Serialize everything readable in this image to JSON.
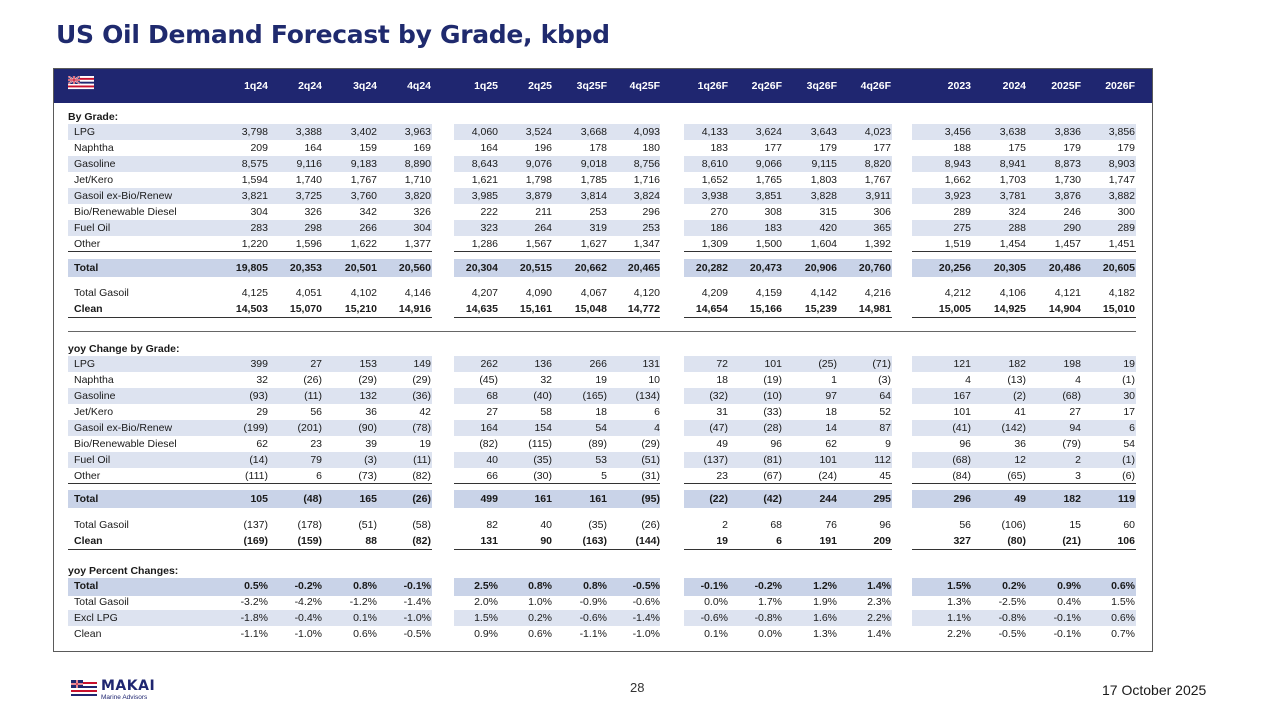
{
  "title": "US Oil Demand Forecast by Grade, kbpd",
  "columns": [
    "1q24",
    "2q24",
    "3q24",
    "4q24",
    "1q25",
    "2q25",
    "3q25F",
    "4q25F",
    "1q26F",
    "2q26F",
    "3q26F",
    "4q26F",
    "2023",
    "2024",
    "2025F",
    "2026F"
  ],
  "sections": [
    {
      "heading": "By Grade:",
      "rows": [
        {
          "label": "LPG",
          "values": [
            "3,798",
            "3,388",
            "3,402",
            "3,963",
            "4,060",
            "3,524",
            "3,668",
            "4,093",
            "4,133",
            "3,624",
            "3,643",
            "4,023",
            "3,456",
            "3,638",
            "3,836",
            "3,856"
          ]
        },
        {
          "label": "Naphtha",
          "values": [
            "209",
            "164",
            "159",
            "169",
            "164",
            "196",
            "178",
            "180",
            "183",
            "177",
            "179",
            "177",
            "188",
            "175",
            "179",
            "179"
          ]
        },
        {
          "label": "Gasoline",
          "values": [
            "8,575",
            "9,116",
            "9,183",
            "8,890",
            "8,643",
            "9,076",
            "9,018",
            "8,756",
            "8,610",
            "9,066",
            "9,115",
            "8,820",
            "8,943",
            "8,941",
            "8,873",
            "8,903"
          ]
        },
        {
          "label": "Jet/Kero",
          "values": [
            "1,594",
            "1,740",
            "1,767",
            "1,710",
            "1,621",
            "1,798",
            "1,785",
            "1,716",
            "1,652",
            "1,765",
            "1,803",
            "1,767",
            "1,662",
            "1,703",
            "1,730",
            "1,747"
          ]
        },
        {
          "label": "Gasoil ex-Bio/Renew",
          "values": [
            "3,821",
            "3,725",
            "3,760",
            "3,820",
            "3,985",
            "3,879",
            "3,814",
            "3,824",
            "3,938",
            "3,851",
            "3,828",
            "3,911",
            "3,923",
            "3,781",
            "3,876",
            "3,882"
          ]
        },
        {
          "label": "Bio/Renewable Diesel",
          "values": [
            "304",
            "326",
            "342",
            "326",
            "222",
            "211",
            "253",
            "296",
            "270",
            "308",
            "315",
            "306",
            "289",
            "324",
            "246",
            "300"
          ]
        },
        {
          "label": "Fuel Oil",
          "values": [
            "283",
            "298",
            "266",
            "304",
            "323",
            "264",
            "319",
            "253",
            "186",
            "183",
            "420",
            "365",
            "275",
            "288",
            "290",
            "289"
          ]
        },
        {
          "label": "Other",
          "values": [
            "1,220",
            "1,596",
            "1,622",
            "1,377",
            "1,286",
            "1,567",
            "1,627",
            "1,347",
            "1,309",
            "1,500",
            "1,604",
            "1,392",
            "1,519",
            "1,454",
            "1,457",
            "1,451"
          ]
        }
      ],
      "total": {
        "label": "Total",
        "values": [
          "19,805",
          "20,353",
          "20,501",
          "20,560",
          "20,304",
          "20,515",
          "20,662",
          "20,465",
          "20,282",
          "20,473",
          "20,906",
          "20,760",
          "20,256",
          "20,305",
          "20,486",
          "20,605"
        ]
      },
      "extra": [
        {
          "label": "Total Gasoil",
          "bold": false,
          "values": [
            "4,125",
            "4,051",
            "4,102",
            "4,146",
            "4,207",
            "4,090",
            "4,067",
            "4,120",
            "4,209",
            "4,159",
            "4,142",
            "4,216",
            "4,212",
            "4,106",
            "4,121",
            "4,182"
          ]
        },
        {
          "label": "Clean",
          "bold": true,
          "values": [
            "14,503",
            "15,070",
            "15,210",
            "14,916",
            "14,635",
            "15,161",
            "15,048",
            "14,772",
            "14,654",
            "15,166",
            "15,239",
            "14,981",
            "15,005",
            "14,925",
            "14,904",
            "15,010"
          ]
        }
      ]
    },
    {
      "heading": "yoy Change by Grade:",
      "rows": [
        {
          "label": "LPG",
          "values": [
            "399",
            "27",
            "153",
            "149",
            "262",
            "136",
            "266",
            "131",
            "72",
            "101",
            "(25)",
            "(71)",
            "121",
            "182",
            "198",
            "19"
          ]
        },
        {
          "label": "Naphtha",
          "values": [
            "32",
            "(26)",
            "(29)",
            "(29)",
            "(45)",
            "32",
            "19",
            "10",
            "18",
            "(19)",
            "1",
            "(3)",
            "4",
            "(13)",
            "4",
            "(1)"
          ]
        },
        {
          "label": "Gasoline",
          "values": [
            "(93)",
            "(11)",
            "132",
            "(36)",
            "68",
            "(40)",
            "(165)",
            "(134)",
            "(32)",
            "(10)",
            "97",
            "64",
            "167",
            "(2)",
            "(68)",
            "30"
          ]
        },
        {
          "label": "Jet/Kero",
          "values": [
            "29",
            "56",
            "36",
            "42",
            "27",
            "58",
            "18",
            "6",
            "31",
            "(33)",
            "18",
            "52",
            "101",
            "41",
            "27",
            "17"
          ]
        },
        {
          "label": "Gasoil ex-Bio/Renew",
          "values": [
            "(199)",
            "(201)",
            "(90)",
            "(78)",
            "164",
            "154",
            "54",
            "4",
            "(47)",
            "(28)",
            "14",
            "87",
            "(41)",
            "(142)",
            "94",
            "6"
          ]
        },
        {
          "label": "Bio/Renewable Diesel",
          "values": [
            "62",
            "23",
            "39",
            "19",
            "(82)",
            "(115)",
            "(89)",
            "(29)",
            "49",
            "96",
            "62",
            "9",
            "96",
            "36",
            "(79)",
            "54"
          ]
        },
        {
          "label": "Fuel Oil",
          "values": [
            "(14)",
            "79",
            "(3)",
            "(11)",
            "40",
            "(35)",
            "53",
            "(51)",
            "(137)",
            "(81)",
            "101",
            "112",
            "(68)",
            "12",
            "2",
            "(1)"
          ]
        },
        {
          "label": "Other",
          "values": [
            "(111)",
            "6",
            "(73)",
            "(82)",
            "66",
            "(30)",
            "5",
            "(31)",
            "23",
            "(67)",
            "(24)",
            "45",
            "(84)",
            "(65)",
            "3",
            "(6)"
          ]
        }
      ],
      "total": {
        "label": "Total",
        "values": [
          "105",
          "(48)",
          "165",
          "(26)",
          "499",
          "161",
          "161",
          "(95)",
          "(22)",
          "(42)",
          "244",
          "295",
          "296",
          "49",
          "182",
          "119"
        ]
      },
      "extra": [
        {
          "label": "Total Gasoil",
          "bold": false,
          "values": [
            "(137)",
            "(178)",
            "(51)",
            "(58)",
            "82",
            "40",
            "(35)",
            "(26)",
            "2",
            "68",
            "76",
            "96",
            "56",
            "(106)",
            "15",
            "60"
          ]
        },
        {
          "label": "Clean",
          "bold": true,
          "values": [
            "(169)",
            "(159)",
            "88",
            "(82)",
            "131",
            "90",
            "(163)",
            "(144)",
            "19",
            "6",
            "191",
            "209",
            "327",
            "(80)",
            "(21)",
            "106"
          ]
        }
      ]
    },
    {
      "heading": "yoy Percent Changes:",
      "rows": [
        {
          "label": "Total",
          "bold": true,
          "values": [
            "0.5%",
            "-0.2%",
            "0.8%",
            "-0.1%",
            "2.5%",
            "0.8%",
            "0.8%",
            "-0.5%",
            "-0.1%",
            "-0.2%",
            "1.2%",
            "1.4%",
            "1.5%",
            "0.2%",
            "0.9%",
            "0.6%"
          ]
        },
        {
          "label": "Total Gasoil",
          "values": [
            "-3.2%",
            "-4.2%",
            "-1.2%",
            "-1.4%",
            "2.0%",
            "1.0%",
            "-0.9%",
            "-0.6%",
            "0.0%",
            "1.7%",
            "1.9%",
            "2.3%",
            "1.3%",
            "-2.5%",
            "0.4%",
            "1.5%"
          ]
        },
        {
          "label": "Excl LPG",
          "values": [
            "-1.8%",
            "-0.4%",
            "0.1%",
            "-1.0%",
            "1.5%",
            "0.2%",
            "-0.6%",
            "-1.4%",
            "-0.6%",
            "-0.8%",
            "1.6%",
            "2.2%",
            "1.1%",
            "-0.8%",
            "-0.1%",
            "0.6%"
          ]
        },
        {
          "label": "Clean",
          "values": [
            "-1.1%",
            "-1.0%",
            "0.6%",
            "-0.5%",
            "0.9%",
            "0.6%",
            "-1.1%",
            "-1.0%",
            "0.1%",
            "0.0%",
            "1.3%",
            "1.4%",
            "2.2%",
            "-0.5%",
            "-0.1%",
            "0.7%"
          ]
        }
      ]
    }
  ],
  "footer": {
    "logo_text": "MAKAI",
    "logo_sub": "Marine Advisors",
    "page_number": "28",
    "date": "17 October 2025"
  },
  "colors": {
    "header_bg": "#1f2670",
    "band": "#dde3f0",
    "total_band": "#c9d3e8",
    "title": "#1f2a6e"
  }
}
